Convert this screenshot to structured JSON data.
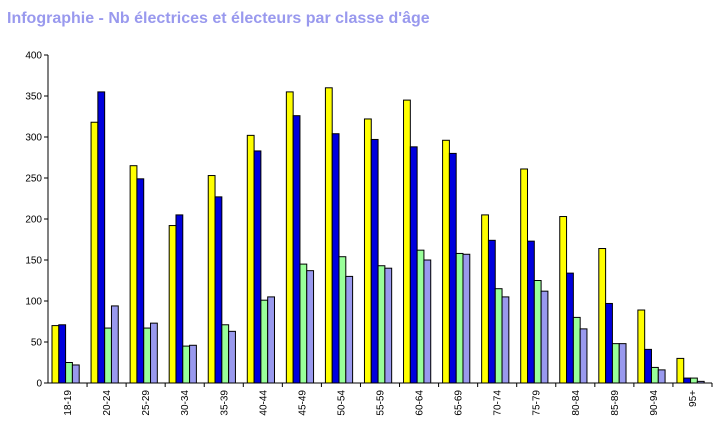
{
  "chart_data": {
    "type": "bar",
    "title": "Infographie - Nb électrices et électeurs par classe d'âge",
    "xlabel": "",
    "ylabel": "",
    "ylim": [
      0,
      400
    ],
    "yticks": [
      0,
      50,
      100,
      150,
      200,
      250,
      300,
      350,
      400
    ],
    "grid": false,
    "legend": "none",
    "categories": [
      "18-19",
      "20-24",
      "25-29",
      "30-34",
      "35-39",
      "40-44",
      "45-49",
      "50-54",
      "55-59",
      "60-64",
      "65-69",
      "70-74",
      "75-79",
      "80-84",
      "85-89",
      "90-94",
      "95+"
    ],
    "series": [
      {
        "color": "#ffff00",
        "values": [
          70,
          318,
          265,
          192,
          253,
          302,
          355,
          360,
          322,
          345,
          296,
          205,
          261,
          203,
          164,
          89,
          30
        ]
      },
      {
        "color": "#0000dd",
        "values": [
          71,
          355,
          249,
          205,
          227,
          283,
          326,
          304,
          297,
          288,
          280,
          174,
          173,
          134,
          97,
          41,
          6
        ]
      },
      {
        "color": "#99ff99",
        "values": [
          25,
          67,
          67,
          45,
          71,
          101,
          145,
          154,
          143,
          162,
          158,
          115,
          125,
          80,
          48,
          19,
          6
        ]
      },
      {
        "color": "#9999ee",
        "values": [
          22,
          94,
          73,
          46,
          63,
          105,
          137,
          130,
          140,
          150,
          157,
          105,
          112,
          66,
          48,
          16,
          2
        ]
      }
    ]
  }
}
